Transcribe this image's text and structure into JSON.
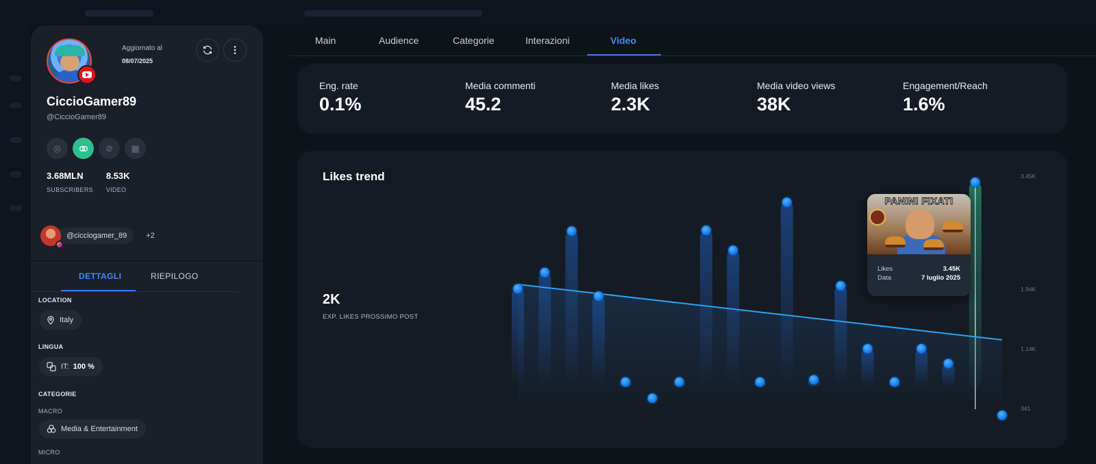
{
  "profile": {
    "updated_label": "Aggiornato al",
    "updated_date": "08/07/2025",
    "name": "CiccioGamer89",
    "handle": "@CiccioGamer89",
    "stats": [
      {
        "value": "3.68MLN",
        "label": "SUBSCRIBERS"
      },
      {
        "value": "8.53K",
        "label": "VIDEO"
      }
    ],
    "linked_account": "@cicciogamer_89",
    "linked_more": "+2",
    "tabs": [
      "DETTAGLI",
      "RIEPILOGO"
    ],
    "location_label": "LOCATION",
    "location": "Italy",
    "language_label": "LINGUA",
    "language_code": "IT:",
    "language_pct": "100 %",
    "categories_label": "CATEGORIE",
    "macro_label": "MACRO",
    "macro": "Media & Entertainment",
    "micro_label": "MICRO"
  },
  "tabs": [
    "Main",
    "Audience",
    "Categorie",
    "Interazioni",
    "Video"
  ],
  "active_tab": "Video",
  "kpis": [
    {
      "title": "Eng. rate",
      "value": "0.1%"
    },
    {
      "title": "Media commenti",
      "value": "45.2"
    },
    {
      "title": "Media likes",
      "value": "2.3K"
    },
    {
      "title": "Media video views",
      "value": "38K"
    },
    {
      "title": "Engagement/Reach",
      "value": "1.6%"
    }
  ],
  "likes_chart": {
    "title": "Likes trend",
    "expected_value": "2K",
    "expected_label": "EXP. LIKES PROSSIMO POST"
  },
  "tooltip": {
    "thumbnail_title": "PANINI FIXATI",
    "likes_label": "Likes",
    "likes_value": "3.45K",
    "date_label": "Data",
    "date_value": "7 luglio 2025"
  },
  "colors": {
    "accent": "#2f7df6",
    "point": "#1e90ff",
    "trend": "#2aa3f5",
    "active_social": "#2fbf8d"
  },
  "chart_data": {
    "type": "scatter",
    "title": "Likes trend",
    "yticks": [
      "3.45K",
      "1.94K",
      "1.14K",
      "341"
    ],
    "ytick_values": [
      3450,
      1940,
      1140,
      341
    ],
    "series": [
      {
        "values": [
          2010,
          2230,
          2790,
          1910,
          750,
          530,
          750,
          2800,
          2530,
          750,
          3180,
          780,
          2050,
          1200,
          750,
          1200,
          1000,
          3450,
          300
        ]
      }
    ],
    "trend_line": {
      "start": 2070,
      "end": 1320
    },
    "highlight_index": 17
  }
}
